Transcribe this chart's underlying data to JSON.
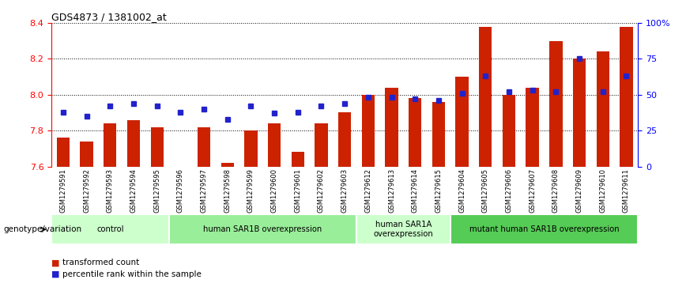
{
  "title": "GDS4873 / 1381002_at",
  "samples": [
    "GSM1279591",
    "GSM1279592",
    "GSM1279593",
    "GSM1279594",
    "GSM1279595",
    "GSM1279596",
    "GSM1279597",
    "GSM1279598",
    "GSM1279599",
    "GSM1279600",
    "GSM1279601",
    "GSM1279602",
    "GSM1279603",
    "GSM1279612",
    "GSM1279613",
    "GSM1279614",
    "GSM1279615",
    "GSM1279604",
    "GSM1279605",
    "GSM1279606",
    "GSM1279607",
    "GSM1279608",
    "GSM1279609",
    "GSM1279610",
    "GSM1279611"
  ],
  "bar_values": [
    7.76,
    7.74,
    7.84,
    7.86,
    7.82,
    7.6,
    7.82,
    7.62,
    7.8,
    7.84,
    7.68,
    7.84,
    7.9,
    8.0,
    8.04,
    7.98,
    7.96,
    8.1,
    8.38,
    8.0,
    8.04,
    8.3,
    8.2,
    8.24,
    8.38
  ],
  "percentile_values": [
    38,
    35,
    42,
    44,
    42,
    38,
    40,
    33,
    42,
    37,
    38,
    42,
    44,
    48,
    48,
    47,
    46,
    51,
    63,
    52,
    53,
    52,
    75,
    52,
    63
  ],
  "groups": [
    {
      "label": "control",
      "start": 0,
      "end": 5,
      "color": "#ccffcc"
    },
    {
      "label": "human SAR1B overexpression",
      "start": 5,
      "end": 13,
      "color": "#99ee99"
    },
    {
      "label": "human SAR1A\noverexpression",
      "start": 13,
      "end": 17,
      "color": "#ccffcc"
    },
    {
      "label": "mutant human SAR1B overexpression",
      "start": 17,
      "end": 25,
      "color": "#55cc55"
    }
  ],
  "bar_color": "#cc2200",
  "dot_color": "#2222cc",
  "ylim_left": [
    7.6,
    8.4
  ],
  "ylim_right": [
    0,
    100
  ],
  "yticks_left": [
    7.6,
    7.8,
    8.0,
    8.2,
    8.4
  ],
  "yticks_right": [
    0,
    25,
    50,
    75,
    100
  ],
  "ytick_labels_right": [
    "0",
    "25",
    "50",
    "75",
    "100%"
  ],
  "legend_items": [
    "transformed count",
    "percentile rank within the sample"
  ],
  "bar_width": 0.55,
  "figsize": [
    8.68,
    3.63
  ],
  "dpi": 100
}
